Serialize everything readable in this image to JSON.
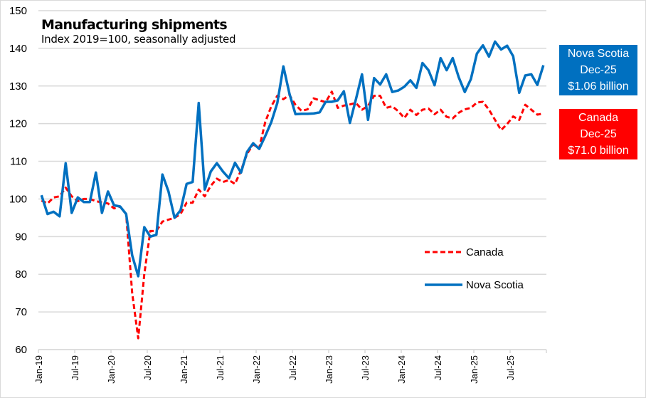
{
  "chart_data": {
    "type": "line",
    "title": "Manufacturing shipments",
    "subtitle": "Index 2019=100, seasonally adjusted",
    "xlabel": "",
    "ylabel": "",
    "ylim": [
      60,
      150
    ],
    "yticks": [
      60,
      70,
      80,
      90,
      100,
      110,
      120,
      130,
      140,
      150
    ],
    "grid": true,
    "legend_position": "bottom-right-inside",
    "x_tick_labels": [
      "Jan-19",
      "Jul-19",
      "Jan-20",
      "Jul-20",
      "Jan-21",
      "Jul-21",
      "Jan-22",
      "Jul-22",
      "Jan-23",
      "Jul-23",
      "Jan-24",
      "Jul-24",
      "Jan-25",
      "Jul-25"
    ],
    "x_start": "Jan-19",
    "x_end": "Dec-25",
    "series": [
      {
        "name": "Canada",
        "color": "#ff0000",
        "style": "dashed",
        "values": [
          99.6,
          98.8,
          100.4,
          100.7,
          103.0,
          100.7,
          99.4,
          100.0,
          100.0,
          99.4,
          99.1,
          98.8,
          97.5,
          98.0,
          96.0,
          75.0,
          63.0,
          80.0,
          91.5,
          91.5,
          94.0,
          94.5,
          95.0,
          96.0,
          99.0,
          99.0,
          102.5,
          100.7,
          103.5,
          105.4,
          104.5,
          105.0,
          104.0,
          107.6,
          112.0,
          114.5,
          113.5,
          120.4,
          124.6,
          127.4,
          126.5,
          127.6,
          125.0,
          123.4,
          123.8,
          126.7,
          126.2,
          125.7,
          128.5,
          124.2,
          124.8,
          125.1,
          125.5,
          123.7,
          124.7,
          127.4,
          127.4,
          124.2,
          124.6,
          123.3,
          121.5,
          123.7,
          122.3,
          123.7,
          124.0,
          122.5,
          123.7,
          121.8,
          121.4,
          122.9,
          123.8,
          124.2,
          125.6,
          125.8,
          123.7,
          121.0,
          118.3,
          119.9,
          121.9,
          121.0,
          125.0,
          123.7,
          122.4,
          122.7
        ]
      },
      {
        "name": "Nova Scotia",
        "color": "#0070c0",
        "style": "solid",
        "values": [
          101.0,
          96.0,
          96.6,
          95.4,
          109.5,
          96.3,
          100.4,
          99.2,
          99.2,
          107.0,
          96.3,
          102.0,
          98.3,
          98.0,
          96.0,
          85.0,
          79.5,
          92.5,
          90.0,
          90.5,
          106.5,
          102.0,
          95.0,
          97.0,
          104.0,
          104.5,
          125.5,
          102.5,
          107.3,
          109.5,
          107.3,
          105.5,
          109.6,
          107.0,
          112.5,
          114.8,
          113.3,
          116.7,
          120.4,
          125.5,
          135.2,
          128.0,
          122.5,
          122.6,
          122.6,
          122.7,
          123.0,
          125.8,
          125.8,
          126.2,
          128.6,
          120.2,
          126.5,
          133.1,
          121.0,
          132.1,
          130.4,
          133.1,
          128.4,
          128.8,
          129.8,
          131.5,
          129.5,
          136.1,
          134.2,
          130.2,
          137.4,
          134.2,
          137.4,
          132.3,
          128.4,
          131.8,
          138.6,
          140.8,
          137.8,
          141.8,
          139.7,
          140.7,
          137.9,
          128.2,
          132.8,
          133.1,
          130.3,
          135.5
        ]
      }
    ]
  },
  "callouts": {
    "nova_scotia": {
      "line1": "Nova Scotia",
      "line2": "Dec-25",
      "line3": "$1.06 billion",
      "color": "#0070c0"
    },
    "canada": {
      "line1": "Canada",
      "line2": "Dec-25",
      "line3": "$71.0 billion",
      "color": "#ff0000"
    }
  },
  "legend": {
    "items": [
      {
        "label": "Canada"
      },
      {
        "label": "Nova Scotia"
      }
    ]
  }
}
